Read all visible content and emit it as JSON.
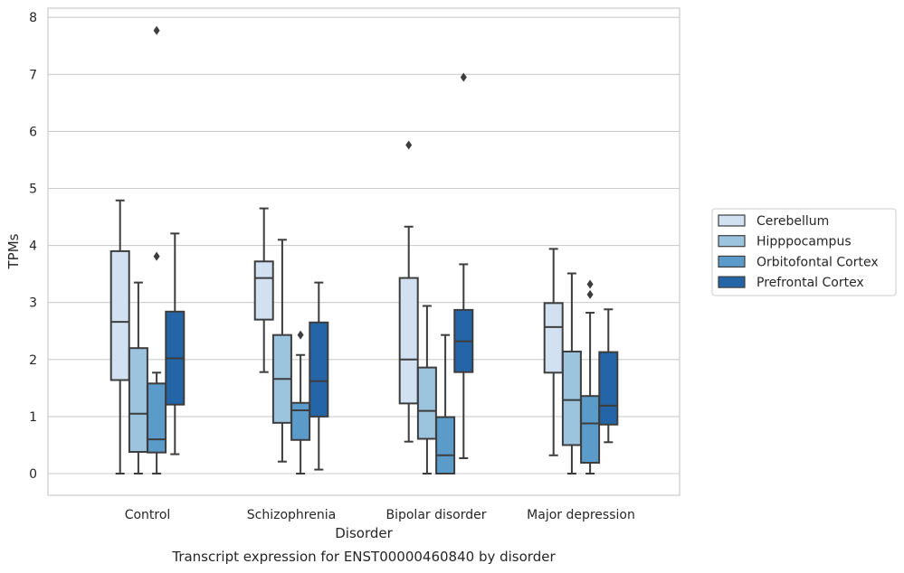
{
  "chart_data": {
    "type": "box",
    "title": "Transcript expression for ENST00000460840 by disorder",
    "xlabel": "Disorder",
    "ylabel": "TPMs",
    "ylim": [
      -0.38,
      8.15
    ],
    "yticks": [
      0,
      1,
      2,
      3,
      4,
      5,
      6,
      7,
      8
    ],
    "grid": "horizontal",
    "legend_position": "right",
    "categories": [
      "Control",
      "Schizophrenia",
      "Bipolar disorder",
      "Major depression"
    ],
    "series": [
      {
        "name": "Cerebellum",
        "color": "#d1e1f1",
        "boxes": [
          {
            "whisker_low": 0.0,
            "q1": 1.64,
            "median": 2.66,
            "q3": 3.9,
            "whisker_high": 4.79,
            "outliers": []
          },
          {
            "whisker_low": 1.78,
            "q1": 2.7,
            "median": 3.43,
            "q3": 3.72,
            "whisker_high": 4.65,
            "outliers": []
          },
          {
            "whisker_low": 0.56,
            "q1": 1.23,
            "median": 2.0,
            "q3": 3.43,
            "whisker_high": 4.33,
            "outliers": [
              5.76
            ]
          },
          {
            "whisker_low": 0.32,
            "q1": 1.77,
            "median": 2.57,
            "q3": 2.99,
            "whisker_high": 3.94,
            "outliers": []
          }
        ]
      },
      {
        "name": "Hipppocampus",
        "color": "#9dc4df",
        "boxes": [
          {
            "whisker_low": 0.0,
            "q1": 0.38,
            "median": 1.05,
            "q3": 2.2,
            "whisker_high": 3.35,
            "outliers": []
          },
          {
            "whisker_low": 0.21,
            "q1": 0.89,
            "median": 1.66,
            "q3": 2.43,
            "whisker_high": 4.1,
            "outliers": []
          },
          {
            "whisker_low": 0.0,
            "q1": 0.61,
            "median": 1.1,
            "q3": 1.86,
            "whisker_high": 2.94,
            "outliers": []
          },
          {
            "whisker_low": 0.0,
            "q1": 0.5,
            "median": 1.29,
            "q3": 2.14,
            "whisker_high": 3.51,
            "outliers": []
          }
        ]
      },
      {
        "name": "Orbitofontal Cortex",
        "color": "#5a9bc9",
        "boxes": [
          {
            "whisker_low": 0.0,
            "q1": 0.37,
            "median": 0.6,
            "q3": 1.58,
            "whisker_high": 1.77,
            "outliers": [
              7.77,
              3.81
            ]
          },
          {
            "whisker_low": 0.0,
            "q1": 0.59,
            "median": 1.11,
            "q3": 1.24,
            "whisker_high": 2.08,
            "outliers": [
              2.43
            ]
          },
          {
            "whisker_low": 0.0,
            "q1": 0.0,
            "median": 0.32,
            "q3": 0.99,
            "whisker_high": 2.43,
            "outliers": []
          },
          {
            "whisker_low": 0.0,
            "q1": 0.19,
            "median": 0.88,
            "q3": 1.36,
            "whisker_high": 2.82,
            "outliers": [
              3.32,
              3.14
            ]
          }
        ]
      },
      {
        "name": "Prefrontal Cortex",
        "color": "#2465a7",
        "boxes": [
          {
            "whisker_low": 0.34,
            "q1": 1.21,
            "median": 2.02,
            "q3": 2.84,
            "whisker_high": 4.21,
            "outliers": []
          },
          {
            "whisker_low": 0.07,
            "q1": 1.0,
            "median": 1.62,
            "q3": 2.65,
            "whisker_high": 3.35,
            "outliers": []
          },
          {
            "whisker_low": 0.27,
            "q1": 1.78,
            "median": 2.32,
            "q3": 2.87,
            "whisker_high": 3.67,
            "outliers": [
              6.95
            ]
          },
          {
            "whisker_low": 0.55,
            "q1": 0.86,
            "median": 1.19,
            "q3": 2.13,
            "whisker_high": 2.88,
            "outliers": []
          }
        ]
      }
    ]
  },
  "colors": {
    "box_edge": "#3d3d3d",
    "grid": "#cccccc",
    "frame": "#cccccc"
  }
}
